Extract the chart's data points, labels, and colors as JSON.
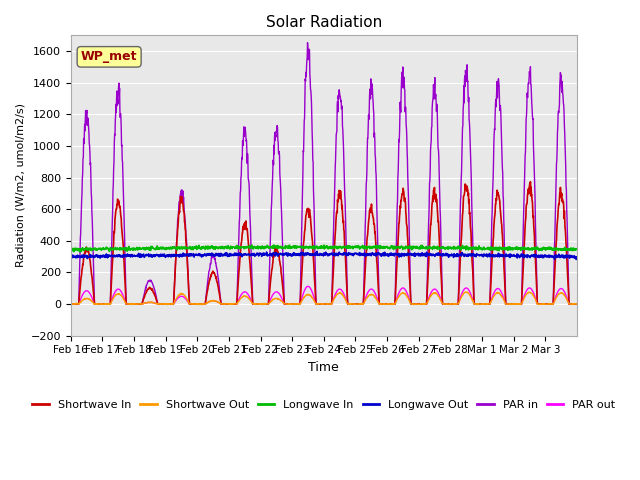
{
  "title": "Solar Radiation",
  "ylabel": "Radiation (W/m2, umol/m2/s)",
  "xlabel": "Time",
  "ylim": [
    -200,
    1700
  ],
  "yticks": [
    -200,
    0,
    200,
    400,
    600,
    800,
    1000,
    1200,
    1400,
    1600
  ],
  "background_color": "#ffffff",
  "plot_bg_color": "#e8e8e8",
  "label_box": "WP_met",
  "label_box_color": "#ffff99",
  "label_box_text_color": "#990000",
  "series": {
    "shortwave_in": {
      "label": "Shortwave In",
      "color": "#cc0000"
    },
    "shortwave_out": {
      "label": "Shortwave Out",
      "color": "#ff9900"
    },
    "longwave_in": {
      "label": "Longwave In",
      "color": "#00bb00"
    },
    "longwave_out": {
      "label": "Longwave Out",
      "color": "#0000cc"
    },
    "par_in": {
      "label": "PAR in",
      "color": "#9900cc"
    },
    "par_out": {
      "label": "PAR out",
      "color": "#ff00ff"
    }
  },
  "tick_labels": [
    "Feb 16",
    "Feb 17",
    "Feb 18",
    "Feb 19",
    "Feb 20",
    "Feb 21",
    "Feb 22",
    "Feb 23",
    "Feb 24",
    "Feb 25",
    "Feb 26",
    "Feb 27",
    "Feb 28",
    "Mar 1",
    "Mar 2",
    "Mar 3"
  ],
  "n_days": 16,
  "pts_per_day": 96,
  "day_peaks_sw": [
    350,
    650,
    100,
    650,
    200,
    500,
    350,
    600,
    700,
    600,
    700,
    700,
    750,
    700,
    750,
    700
  ],
  "day_peaks_par": [
    1200,
    1350,
    150,
    700,
    300,
    1100,
    1100,
    1600,
    1350,
    1350,
    1450,
    1350,
    1450,
    1400,
    1450,
    1400
  ]
}
